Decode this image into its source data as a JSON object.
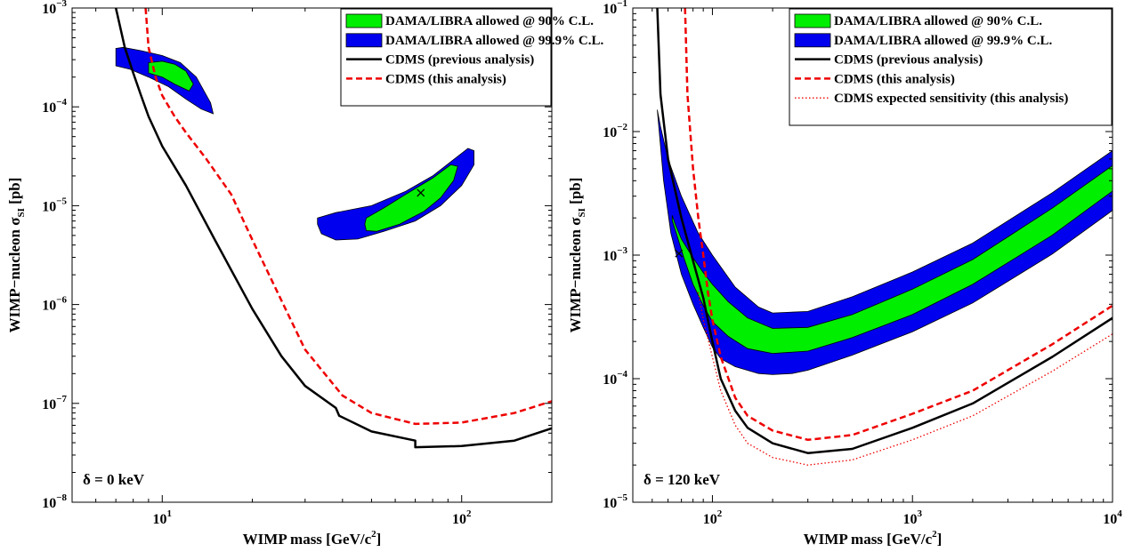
{
  "chart_data": [
    {
      "type": "line",
      "xscale": "log",
      "yscale": "log",
      "xlim": [
        5,
        200
      ],
      "ylim": [
        1e-08,
        0.001
      ],
      "grid": false,
      "legend_position": "top-right",
      "xlabel": "WIMP mass [GeV/c",
      "xlabel_sup": "2",
      "xlabel_tail": "]",
      "ylabel": "WIMP−nucleon σ",
      "ylabel_sub": "SI",
      "ylabel_tail": " [pb]",
      "annotation": "δ = 0 keV",
      "xticks": [
        {
          "value": 10,
          "base": "10",
          "exp": "1"
        },
        {
          "value": 100,
          "base": "10",
          "exp": "2"
        }
      ],
      "yticks": [
        {
          "value": 1e-08,
          "base": "10",
          "exp": "−8"
        },
        {
          "value": 1e-07,
          "base": "10",
          "exp": "−7"
        },
        {
          "value": 1e-06,
          "base": "10",
          "exp": "−6"
        },
        {
          "value": 1e-05,
          "base": "10",
          "exp": "−5"
        },
        {
          "value": 0.0001,
          "base": "10",
          "exp": "−4"
        },
        {
          "value": 0.001,
          "base": "10",
          "exp": "−3"
        }
      ],
      "legend": [
        {
          "label": "DAMA/LIBRA allowed @ 90% C.L.",
          "kind": "patch",
          "color": "#00ee00"
        },
        {
          "label": "DAMA/LIBRA allowed @ 99.9% C.L.",
          "kind": "patch",
          "color": "#0000ee"
        },
        {
          "label": "CDMS (previous analysis)",
          "kind": "line",
          "color": "#000000",
          "style": "solid"
        },
        {
          "label": "CDMS (this analysis)",
          "kind": "line",
          "color": "#ee0000",
          "style": "dashed"
        }
      ],
      "series": [
        {
          "kind": "line",
          "color": "#000000",
          "style": "solid",
          "x": [
            7.0,
            7.5,
            8.0,
            8.5,
            9.0,
            10.0,
            12.0,
            15.0,
            20.0,
            25.0,
            30.0,
            38.0,
            39.0,
            50.0,
            70.0,
            70.0,
            100.0,
            150.0,
            200.0
          ],
          "y": [
            0.001,
            0.0004,
            0.00022,
            0.00013,
            8e-05,
            4e-05,
            1.6e-05,
            4.5e-06,
            9e-07,
            3e-07,
            1.5e-07,
            9e-08,
            7.5e-08,
            5.2e-08,
            4.2e-08,
            3.6e-08,
            3.7e-08,
            4.2e-08,
            5.6e-08
          ]
        },
        {
          "kind": "line",
          "color": "#ee0000",
          "style": "dashed",
          "x": [
            8.8,
            9.0,
            9.5,
            10.0,
            11.0,
            12.0,
            14.0,
            17.0,
            20.0,
            25.0,
            30.0,
            40.0,
            50.0,
            70.0,
            100.0,
            150.0,
            200.0
          ],
          "y": [
            0.001,
            0.0004,
            0.0002,
            0.00013,
            8e-05,
            5.5e-05,
            3e-05,
            1.3e-05,
            4.5e-06,
            1.1e-06,
            3.5e-07,
            1.2e-07,
            8e-08,
            6.2e-08,
            6.4e-08,
            8e-08,
            1.05e-07
          ]
        },
        {
          "kind": "region",
          "color": "#0000ee",
          "x": [
            7.0,
            7.4,
            8.5,
            10.0,
            11.5,
            13.0,
            14.5,
            14.8,
            13.5,
            12.0,
            10.5,
            9.0,
            7.8,
            7.0
          ],
          "y": [
            0.00039,
            0.0004,
            0.00037,
            0.00033,
            0.00028,
            0.0002,
            0.00011,
            8.5e-05,
            9.5e-05,
            0.00012,
            0.00016,
            0.0002,
            0.00024,
            0.00026
          ]
        },
        {
          "kind": "region",
          "color": "#00ee00",
          "x": [
            9.0,
            10.0,
            11.0,
            12.0,
            12.7,
            12.3,
            11.0,
            10.0,
            9.0
          ],
          "y": [
            0.00028,
            0.00029,
            0.00027,
            0.00023,
            0.00017,
            0.000145,
            0.00017,
            0.0002,
            0.00022
          ]
        },
        {
          "kind": "region",
          "color": "#0000ee",
          "x": [
            33.0,
            38.0,
            50.0,
            65.0,
            80.0,
            95.0,
            105.0,
            110.0,
            110.0,
            100.0,
            85.0,
            70.0,
            55.0,
            45.0,
            38.0,
            34.0,
            33.0
          ],
          "y": [
            7.5e-06,
            8.5e-06,
            1e-05,
            1.4e-05,
            2e-05,
            3e-05,
            3.8e-05,
            3.6e-05,
            2.6e-05,
            1.6e-05,
            1e-05,
            7e-06,
            5.5e-06,
            4.6e-06,
            4.5e-06,
            5.2e-06,
            6.5e-06
          ]
        },
        {
          "kind": "region",
          "color": "#00ee00",
          "x": [
            48.0,
            55.0,
            65.0,
            80.0,
            92.0,
            97.0,
            94.0,
            85.0,
            75.0,
            62.0,
            52.0,
            48.0,
            47.5
          ],
          "y": [
            7.5e-06,
            9.5e-06,
            1.3e-05,
            1.9e-05,
            2.6e-05,
            2.5e-05,
            1.8e-05,
            1.2e-05,
            8.8e-06,
            6.5e-06,
            5.5e-06,
            5.6e-06,
            6.5e-06
          ]
        },
        {
          "kind": "marker",
          "symbol": "x",
          "color": "#000000",
          "x": [
            73.0
          ],
          "y": [
            1.35e-05
          ]
        }
      ]
    },
    {
      "type": "line",
      "xscale": "log",
      "yscale": "log",
      "xlim": [
        40,
        10000
      ],
      "ylim": [
        1e-05,
        0.1
      ],
      "grid": false,
      "legend_position": "top-right",
      "xlabel": "WIMP mass [GeV/c",
      "xlabel_sup": "2",
      "xlabel_tail": "]",
      "ylabel": "WIMP−nucleon σ",
      "ylabel_sub": "SI",
      "ylabel_tail": " [pb]",
      "annotation": "δ = 120 keV",
      "xticks": [
        {
          "value": 100,
          "base": "10",
          "exp": "2"
        },
        {
          "value": 1000,
          "base": "10",
          "exp": "3"
        },
        {
          "value": 10000,
          "base": "10",
          "exp": "4"
        }
      ],
      "yticks": [
        {
          "value": 1e-05,
          "base": "10",
          "exp": "−5"
        },
        {
          "value": 0.0001,
          "base": "10",
          "exp": "−4"
        },
        {
          "value": 0.001,
          "base": "10",
          "exp": "−3"
        },
        {
          "value": 0.01,
          "base": "10",
          "exp": "−2"
        },
        {
          "value": 0.1,
          "base": "10",
          "exp": "−1"
        }
      ],
      "legend": [
        {
          "label": "DAMA/LIBRA allowed @ 90% C.L.",
          "kind": "patch",
          "color": "#00ee00"
        },
        {
          "label": "DAMA/LIBRA allowed @ 99.9% C.L.",
          "kind": "patch",
          "color": "#0000ee"
        },
        {
          "label": "CDMS (previous analysis)",
          "kind": "line",
          "color": "#000000",
          "style": "solid"
        },
        {
          "label": "CDMS (this analysis)",
          "kind": "line",
          "color": "#ee0000",
          "style": "dashed"
        },
        {
          "label": "CDMS expected sensitivity (this analysis)",
          "kind": "line",
          "color": "#ee0000",
          "style": "dotted"
        }
      ],
      "series": [
        {
          "kind": "region",
          "color": "#0000ee",
          "x": [
            53.0,
            55.0,
            60.0,
            70.0,
            85.0,
            100.0,
            130.0,
            170.0,
            200.0,
            300.0,
            500.0,
            1000.0,
            2000.0,
            5000.0,
            10000.0,
            10000.0,
            5000.0,
            2000.0,
            1000.0,
            500.0,
            300.0,
            250.0,
            200.0,
            170.0,
            130.0,
            110.0,
            100.0,
            90.0,
            80.0,
            70.0,
            62.0,
            57.0,
            53.0
          ],
          "y": [
            0.015,
            0.011,
            0.006,
            0.003,
            0.0015,
            0.001,
            0.00055,
            0.00038,
            0.00034,
            0.00035,
            0.00046,
            0.00073,
            0.00125,
            0.0032,
            0.007,
            0.0023,
            0.00102,
            0.00041,
            0.00024,
            0.000155,
            0.000117,
            0.00011,
            0.000108,
            0.00011,
            0.000125,
            0.000145,
            0.00018,
            0.00026,
            0.0004,
            0.0007,
            0.0015,
            0.004,
            0.015
          ]
        },
        {
          "kind": "region",
          "color": "#00ee00",
          "x": [
            63.0,
            65.0,
            70.0,
            80.0,
            90.0,
            100.0,
            120.0,
            150.0,
            200.0,
            300.0,
            500.0,
            1000.0,
            2000.0,
            5000.0,
            10000.0,
            10000.0,
            5000.0,
            2000.0,
            1000.0,
            500.0,
            300.0,
            200.0,
            150.0,
            120.0,
            100.0,
            90.0,
            80.0,
            72.0,
            66.0,
            63.0
          ],
          "y": [
            0.0021,
            0.0018,
            0.00135,
            0.00095,
            0.00072,
            0.00058,
            0.00042,
            0.00031,
            0.000255,
            0.00026,
            0.00033,
            0.00053,
            0.00092,
            0.0024,
            0.0053,
            0.0033,
            0.00145,
            0.00058,
            0.00033,
            0.000215,
            0.000167,
            0.00016,
            0.000175,
            0.00022,
            0.00029,
            0.00039,
            0.00058,
            0.00095,
            0.0015,
            0.0019
          ]
        },
        {
          "kind": "line",
          "color": "#000000",
          "style": "solid",
          "x": [
            53.0,
            55.0,
            60.0,
            70.0,
            80.0,
            90.0,
            100.0,
            110.0,
            130.0,
            150.0,
            200.0,
            300.0,
            500.0,
            1000.0,
            2000.0,
            5000.0,
            10000.0
          ],
          "y": [
            0.1,
            0.02,
            0.006,
            0.002,
            0.0009,
            0.00045,
            0.0002,
            0.0001,
            5.5e-05,
            4e-05,
            3e-05,
            2.5e-05,
            2.7e-05,
            4e-05,
            6.3e-05,
            0.00015,
            0.00031
          ]
        },
        {
          "kind": "line",
          "color": "#ee0000",
          "style": "dashed",
          "x": [
            73.0,
            75.0,
            80.0,
            85.0,
            90.0,
            95.0,
            100.0,
            110.0,
            130.0,
            150.0,
            200.0,
            300.0,
            500.0,
            1000.0,
            2000.0,
            5000.0,
            10000.0
          ],
          "y": [
            0.1,
            0.02,
            0.005,
            0.002,
            0.001,
            0.0005,
            0.0003,
            0.00015,
            7e-05,
            5e-05,
            3.8e-05,
            3.2e-05,
            3.5e-05,
            5.2e-05,
            8e-05,
            0.00019,
            0.00039
          ]
        },
        {
          "kind": "line",
          "color": "#ee0000",
          "style": "dotted",
          "x": [
            85.0,
            90.0,
            100.0,
            110.0,
            130.0,
            150.0,
            200.0,
            300.0,
            500.0,
            1000.0,
            2000.0,
            5000.0,
            10000.0
          ],
          "y": [
            0.0005,
            0.0003,
            0.00015,
            8e-05,
            4.2e-05,
            3e-05,
            2.3e-05,
            2e-05,
            2.2e-05,
            3.2e-05,
            5e-05,
            0.000115,
            0.00023
          ]
        },
        {
          "kind": "marker",
          "symbol": "x",
          "color": "#000000",
          "x": [
            68.0
          ],
          "y": [
            0.00103
          ]
        }
      ]
    }
  ]
}
